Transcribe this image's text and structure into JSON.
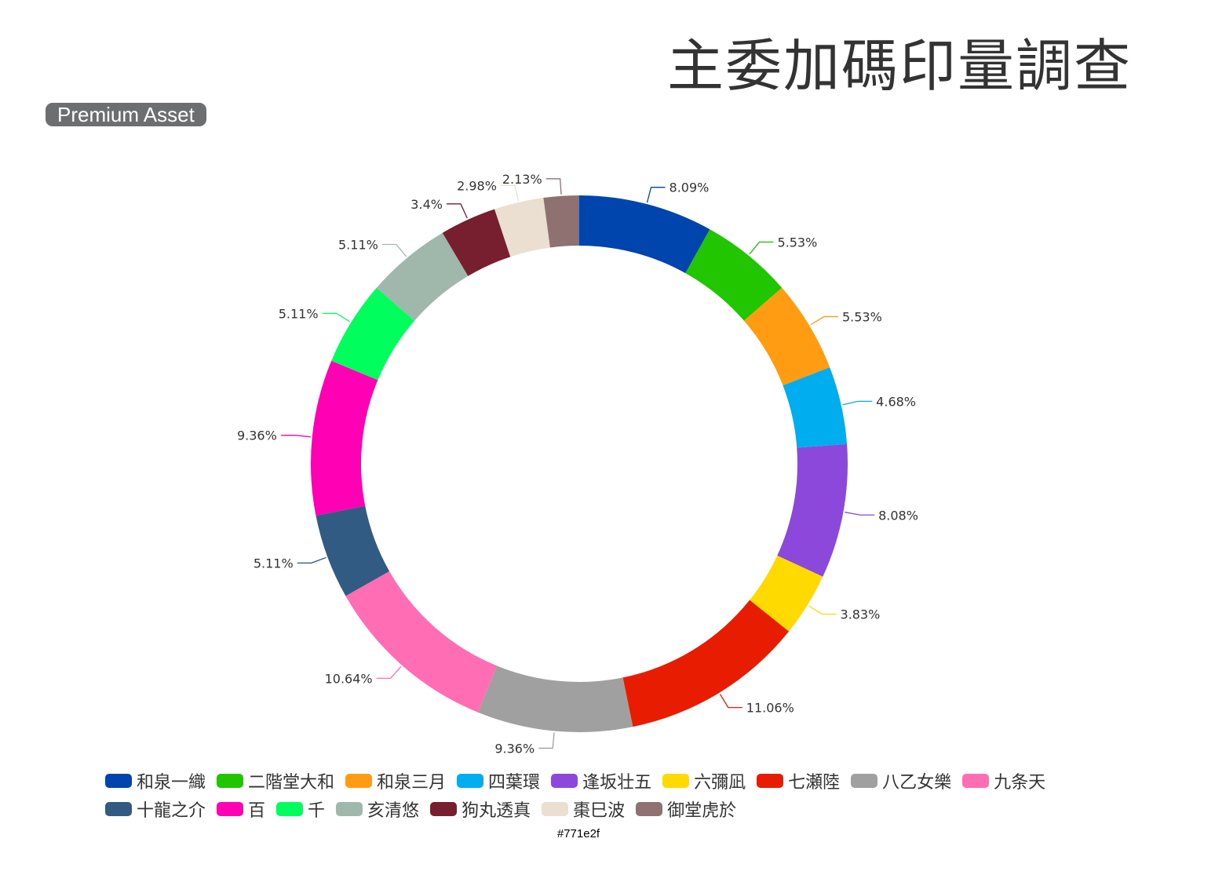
{
  "title": "主委加碼印量調查",
  "badge": "Premium Asset",
  "caption": "#771e2f",
  "chart_data": {
    "type": "pie",
    "donut": true,
    "series": [
      {
        "name": "和泉一織",
        "value": 8.09,
        "label": "8.09%",
        "color": "#0045ae"
      },
      {
        "name": "二階堂大和",
        "value": 5.53,
        "label": "5.53%",
        "color": "#22c600"
      },
      {
        "name": "和泉三月",
        "value": 5.53,
        "label": "5.53%",
        "color": "#ff9c12"
      },
      {
        "name": "四葉環",
        "value": 4.68,
        "label": "4.68%",
        "color": "#00aeef"
      },
      {
        "name": "逢坂壮五",
        "value": 8.08,
        "label": "8.08%",
        "color": "#8b48da"
      },
      {
        "name": "六彌凪",
        "value": 3.83,
        "label": "3.83%",
        "color": "#ffda00"
      },
      {
        "name": "七瀬陸",
        "value": 11.06,
        "label": "11.06%",
        "color": "#e81c00"
      },
      {
        "name": "八乙女樂",
        "value": 9.36,
        "label": "9.36%",
        "color": "#a0a0a0"
      },
      {
        "name": "九条天",
        "value": 10.64,
        "label": "10.64%",
        "color": "#ff6db5"
      },
      {
        "name": "十龍之介",
        "value": 5.11,
        "label": "5.11%",
        "color": "#325b84"
      },
      {
        "name": "百",
        "value": 9.36,
        "label": "9.36%",
        "color": "#ff00b4"
      },
      {
        "name": "千",
        "value": 5.11,
        "label": "5.11%",
        "color": "#00fe5d"
      },
      {
        "name": "亥清悠",
        "value": 5.11,
        "label": "5.11%",
        "color": "#a0b8ab"
      },
      {
        "name": "狗丸透真",
        "value": 3.4,
        "label": "3.4%",
        "color": "#771e2f"
      },
      {
        "name": "棗巳波",
        "value": 2.98,
        "label": "2.98%",
        "color": "#eadfd0"
      },
      {
        "name": "御堂虎於",
        "value": 2.13,
        "label": "2.13%",
        "color": "#8f7172"
      }
    ],
    "legend_rows": [
      [
        0,
        1,
        2,
        3,
        4,
        5,
        6,
        7,
        8
      ],
      [
        9,
        10,
        11,
        12,
        13,
        14,
        15
      ]
    ]
  }
}
